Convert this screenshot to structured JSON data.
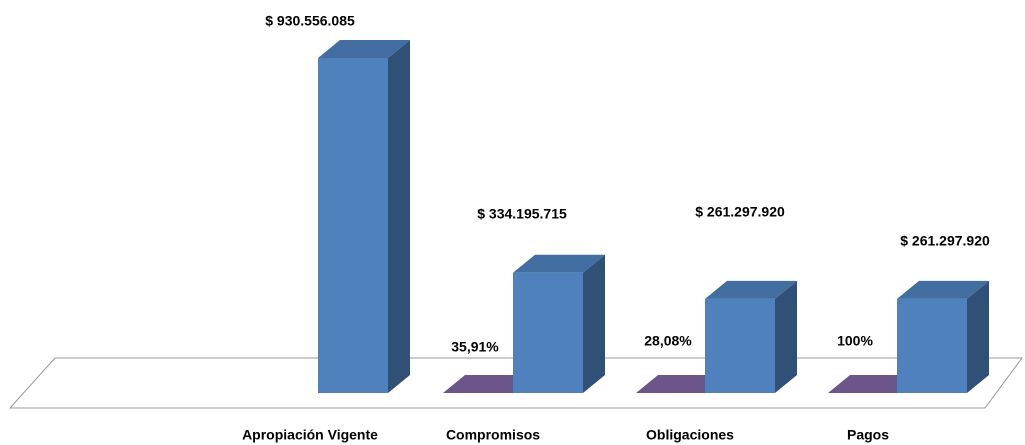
{
  "chart_data": {
    "type": "bar3d",
    "categories": [
      "Apropiación Vigente",
      "Compromisos",
      "Obligaciones",
      "Pagos"
    ],
    "series": [
      {
        "color": "#4f81bd",
        "values": [
          930556085,
          334195715,
          261297920,
          261297920
        ],
        "value_labels": [
          "$ 930.556.085",
          "$ 334.195.715",
          "$ 261.297.920",
          "$ 261.297.920"
        ]
      },
      {
        "color": "#8064a2",
        "values": [
          null,
          35.91,
          28.08,
          100
        ],
        "value_labels": [
          null,
          "35,91%",
          "28,08%",
          "100%"
        ]
      }
    ]
  }
}
